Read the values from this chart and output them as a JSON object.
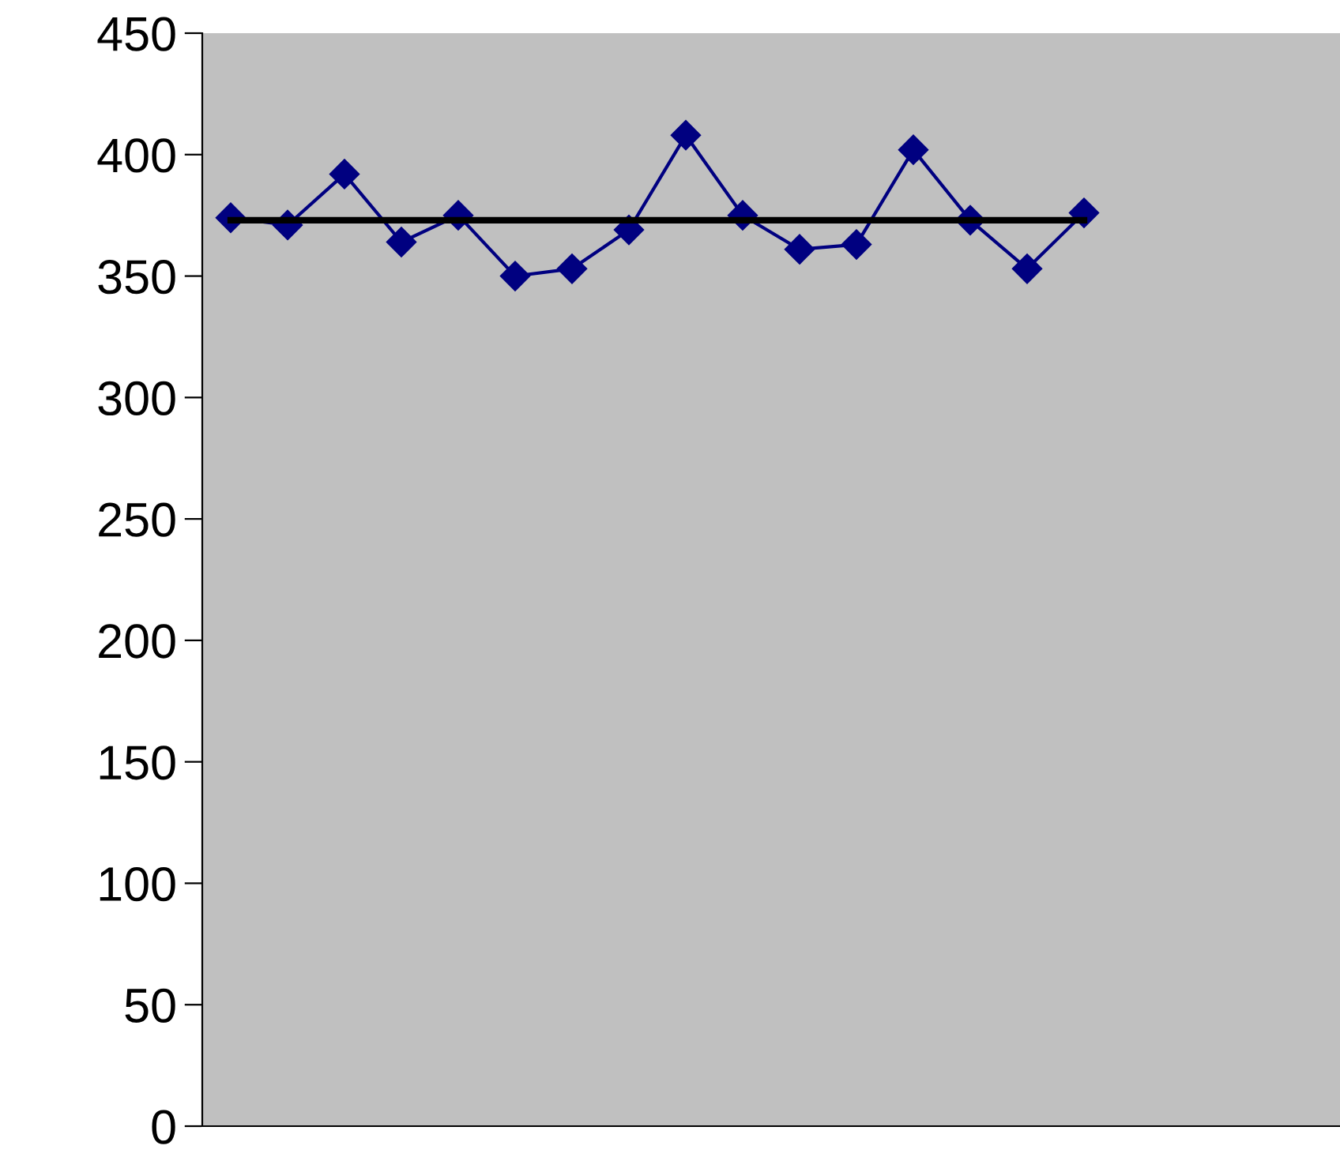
{
  "chart_data": {
    "type": "line",
    "categories": [
      null,
      null,
      null,
      null,
      null,
      null,
      null,
      null,
      null,
      null,
      null,
      null,
      null,
      null,
      null,
      null,
      null,
      null,
      null,
      null
    ],
    "series": [
      {
        "color": "#000080",
        "marker": "diamond",
        "values": [
          374,
          371,
          392,
          364,
          375,
          350,
          353,
          369,
          408,
          375,
          361,
          363,
          402,
          373,
          353,
          376,
          null,
          null,
          null,
          null
        ]
      },
      {
        "color": "#000000",
        "marker": "none",
        "values": [
          373,
          373,
          373,
          373,
          373,
          373,
          373,
          373,
          373,
          373,
          373,
          373,
          373,
          373,
          373,
          373,
          null,
          null,
          null,
          null
        ]
      }
    ],
    "ylim": [
      0,
      450
    ],
    "yticks": [
      0,
      50,
      100,
      150,
      200,
      250,
      300,
      350,
      400,
      450
    ],
    "grid": false,
    "tick_labels": "y",
    "line_style": "solid"
  }
}
